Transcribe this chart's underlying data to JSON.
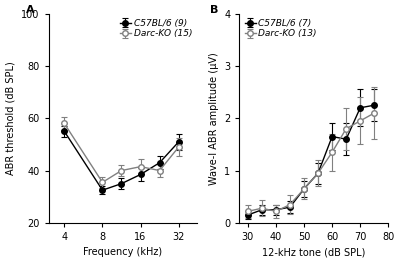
{
  "panel_A": {
    "x_ticks": [
      4,
      8,
      16,
      32
    ],
    "x_label": "Frequency (kHz)",
    "y_label": "ABR threshold (dB SPL)",
    "ylim": [
      20,
      100
    ],
    "yticks": [
      20,
      40,
      60,
      80,
      100
    ],
    "panel_label": "A",
    "c57_label": "C57BL/6 (9)",
    "ko_label": "Darc-KO (15)",
    "c57_x": [
      4,
      8,
      11.3,
      16,
      22.6,
      32
    ],
    "c57_y": [
      55.0,
      32.5,
      35.0,
      38.5,
      43.0,
      51.0
    ],
    "c57_yerr": [
      2.0,
      1.5,
      2.0,
      2.5,
      2.5,
      3.0
    ],
    "ko_x": [
      4,
      8,
      11.3,
      16,
      22.6,
      32
    ],
    "ko_y": [
      58.0,
      35.5,
      40.0,
      41.5,
      40.0,
      49.0
    ],
    "ko_yerr": [
      2.5,
      2.0,
      2.0,
      3.0,
      2.5,
      3.5
    ]
  },
  "panel_B": {
    "x_ticks": [
      30,
      40,
      50,
      60,
      70,
      80
    ],
    "x_label": "12-kHz tone (dB SPL)",
    "y_label": "Wave-I ABR amplitude (μV)",
    "ylim": [
      0,
      4
    ],
    "yticks": [
      0,
      1,
      2,
      3,
      4
    ],
    "panel_label": "B",
    "c57_label": "C57BL/6 (7)",
    "ko_label": "Darc-KO (13)",
    "c57_x": [
      30,
      35,
      40,
      45,
      50,
      55,
      60,
      65,
      70,
      75
    ],
    "c57_y": [
      0.15,
      0.25,
      0.25,
      0.3,
      0.65,
      0.95,
      1.65,
      1.6,
      2.2,
      2.25
    ],
    "c57_yerr": [
      0.08,
      0.1,
      0.1,
      0.12,
      0.15,
      0.2,
      0.25,
      0.3,
      0.35,
      0.3
    ],
    "ko_x": [
      30,
      35,
      40,
      45,
      50,
      55,
      60,
      65,
      70,
      75
    ],
    "ko_y": [
      0.22,
      0.28,
      0.22,
      0.35,
      0.65,
      0.95,
      1.35,
      1.8,
      1.95,
      2.1
    ],
    "ko_yerr": [
      0.12,
      0.15,
      0.12,
      0.18,
      0.2,
      0.25,
      0.35,
      0.4,
      0.45,
      0.5
    ]
  },
  "line_color_c57": "#000000",
  "line_color_ko": "#808080",
  "marker_size": 4,
  "line_width": 1.0,
  "cap_size": 2,
  "elinewidth": 0.8,
  "font_size": 7,
  "label_font_size": 7,
  "legend_font_size": 6.5,
  "bg_color": "#ffffff"
}
